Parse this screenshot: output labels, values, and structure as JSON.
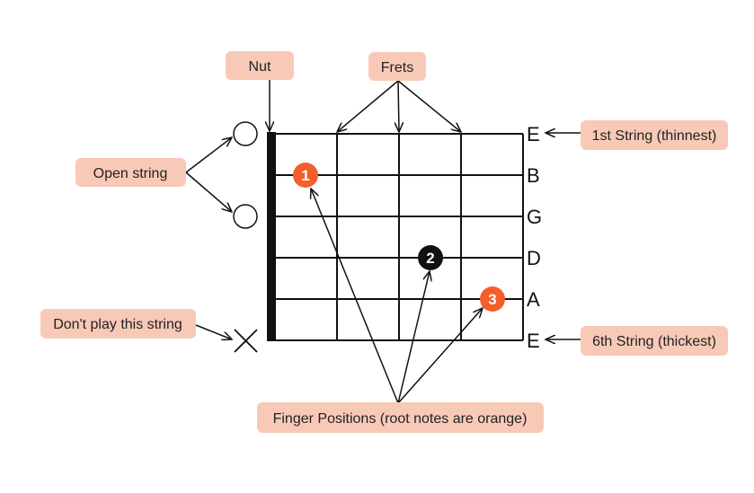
{
  "colors": {
    "callout_bg": "#f9c9b8",
    "root_finger": "#f45e2a",
    "other_finger": "#111111",
    "grid": "#111111"
  },
  "strings": {
    "names": [
      "E",
      "B",
      "G",
      "D",
      "A",
      "E"
    ]
  },
  "fingers": [
    {
      "number": "1",
      "string": "B",
      "fret": 1,
      "root": true
    },
    {
      "number": "2",
      "string": "D",
      "fret": 3,
      "root": false
    },
    {
      "number": "3",
      "string": "A",
      "fret": 4,
      "root": true
    }
  ],
  "markers": {
    "open_strings": [
      "E",
      "G"
    ],
    "muted_strings": [
      "E (6th)"
    ]
  },
  "callouts": {
    "nut": "Nut",
    "frets": "Frets",
    "open_string": "Open string",
    "dont_play": "Don't play this string",
    "first_string": "1st String (thinnest)",
    "sixth_string": "6th String (thickest)",
    "finger_positions": "Finger Positions (root notes are orange)"
  }
}
